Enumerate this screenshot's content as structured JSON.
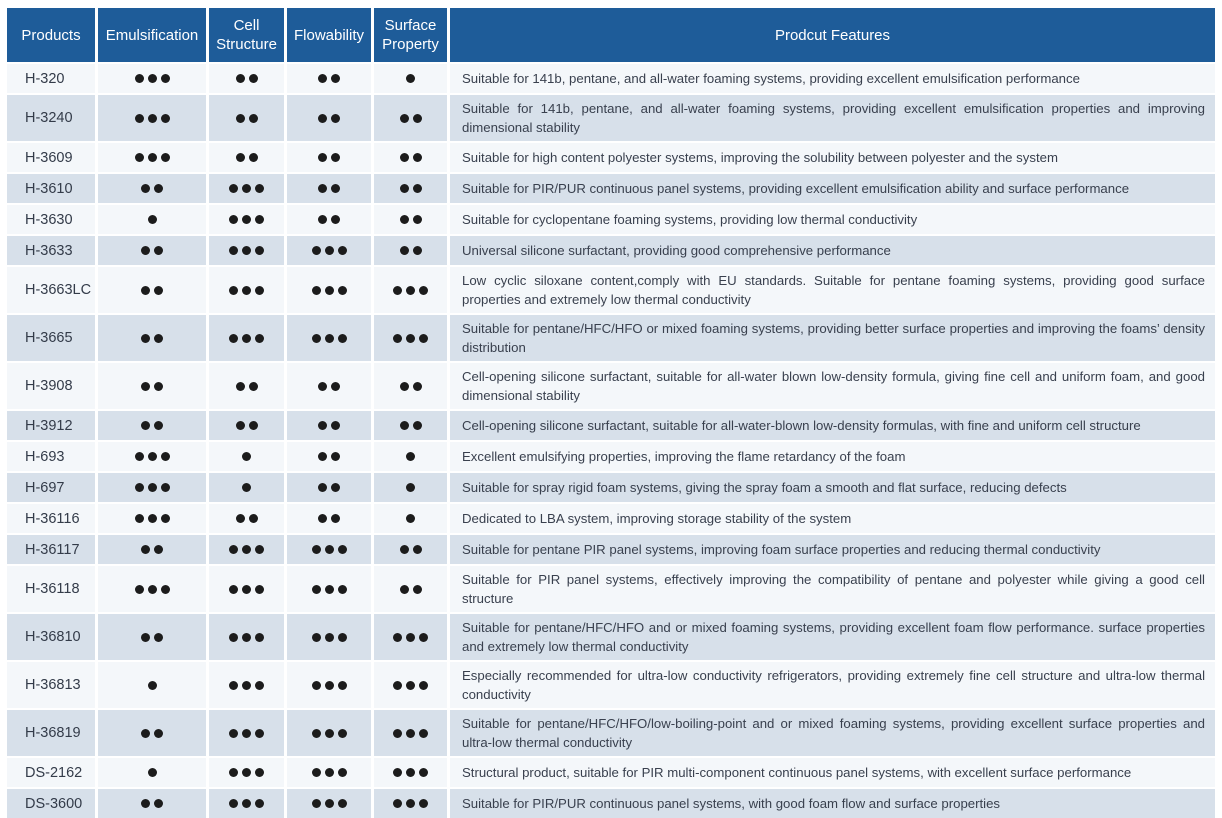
{
  "colors": {
    "header_bg": "#1E5C99",
    "header_text": "#FFFFFF",
    "row_light": "#F4F7FA",
    "row_alt": "#D7E0EA",
    "dot": "#1C1C1C",
    "body_text": "#39404E"
  },
  "table": {
    "headers": {
      "products": "Products",
      "emulsification": "Emulsification",
      "cell_structure": "Cell Structure",
      "flowability": "Flowability",
      "surface_property": "Surface Property",
      "features": "Prodcut Features"
    },
    "rating_scale_max": 3,
    "rows": [
      {
        "product": "H-320",
        "dots": [
          3,
          2,
          2,
          1
        ],
        "features": "Suitable for 141b, pentane, and all-water foaming systems, providing excellent emulsification performance"
      },
      {
        "product": "H-3240",
        "dots": [
          3,
          2,
          2,
          2
        ],
        "features": "Suitable for 141b, pentane, and all-water foaming systems, providing excellent emulsification properties and improving dimensional stability"
      },
      {
        "product": "H-3609",
        "dots": [
          3,
          2,
          2,
          2
        ],
        "features": "Suitable for high content polyester systems, improving the solubility between polyester and the system"
      },
      {
        "product": "H-3610",
        "dots": [
          2,
          3,
          2,
          2
        ],
        "features": "Suitable for PIR/PUR continuous panel systems, providing excellent emulsification ability and surface performance"
      },
      {
        "product": "H-3630",
        "dots": [
          1,
          3,
          2,
          2
        ],
        "features": "Suitable for cyclopentane foaming systems, providing low thermal conductivity"
      },
      {
        "product": "H-3633",
        "dots": [
          2,
          3,
          3,
          2
        ],
        "features": "Universal silicone surfactant, providing good comprehensive performance"
      },
      {
        "product": "H-3663LC",
        "dots": [
          2,
          3,
          3,
          3
        ],
        "features": "Low cyclic siloxane content,comply with EU standards. Suitable for pentane foaming systems, providing good surface properties and extremely low thermal conductivity"
      },
      {
        "product": "H-3665",
        "dots": [
          2,
          3,
          3,
          3
        ],
        "features": "Suitable for pentane/HFC/HFO or mixed foaming systems, providing better surface properties and improving the foams’ density distribution"
      },
      {
        "product": "H-3908",
        "dots": [
          2,
          2,
          2,
          2
        ],
        "features": "Cell-opening silicone surfactant, suitable for all-water blown low-density formula, giving fine cell and uniform foam, and good dimensional stability"
      },
      {
        "product": "H-3912",
        "dots": [
          2,
          2,
          2,
          2
        ],
        "features": "Cell-opening silicone surfactant, suitable for all-water-blown low-density formulas, with fine and uniform cell structure"
      },
      {
        "product": "H-693",
        "dots": [
          3,
          1,
          2,
          1
        ],
        "features": "Excellent emulsifying properties, improving the flame retardancy of the foam"
      },
      {
        "product": "H-697",
        "dots": [
          3,
          1,
          2,
          1
        ],
        "features": "Suitable for spray rigid foam systems, giving the spray foam a smooth and flat surface, reducing defects"
      },
      {
        "product": "H-36116",
        "dots": [
          3,
          2,
          2,
          1
        ],
        "features": "Dedicated to LBA system, improving storage stability of the system"
      },
      {
        "product": "H-36117",
        "dots": [
          2,
          3,
          3,
          2
        ],
        "features": "Suitable for pentane PIR panel systems, improving foam surface properties and reducing thermal conductivity"
      },
      {
        "product": "H-36118",
        "dots": [
          3,
          3,
          3,
          2
        ],
        "features": "Suitable for PIR panel systems, effectively improving the compatibility of pentane and polyester while giving a good cell structure"
      },
      {
        "product": "H-36810",
        "dots": [
          2,
          3,
          3,
          3
        ],
        "features": "Suitable for pentane/HFC/HFO and or mixed foaming systems, providing excellent foam flow performance. surface properties and extremely low thermal conductivity"
      },
      {
        "product": "H-36813",
        "dots": [
          1,
          3,
          3,
          3
        ],
        "features": "Especially recommended for ultra-low conductivity refrigerators, providing extremely fine cell structure and ultra-low thermal conductivity"
      },
      {
        "product": "H-36819",
        "dots": [
          2,
          3,
          3,
          3
        ],
        "features": "Suitable for pentane/HFC/HFO/low-boiling-point and or mixed foaming systems, providing excellent surface properties and ultra-low thermal conductivity"
      },
      {
        "product": "DS-2162",
        "dots": [
          1,
          3,
          3,
          3
        ],
        "features": "Structural product, suitable for PIR multi-component continuous panel systems, with excellent surface performance"
      },
      {
        "product": "DS-3600",
        "dots": [
          2,
          3,
          3,
          3
        ],
        "features": "Suitable for PIR/PUR continuous panel systems, with good foam flow and surface properties"
      }
    ]
  }
}
